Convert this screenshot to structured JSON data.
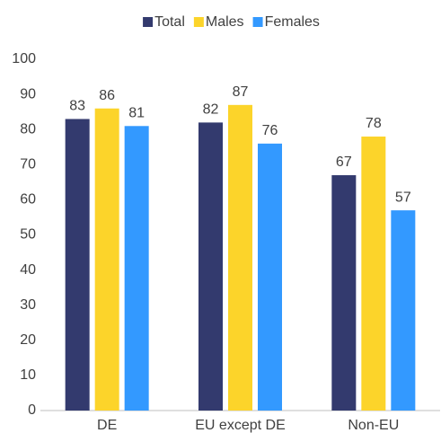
{
  "chart_data": {
    "type": "bar",
    "categories": [
      "DE",
      "EU except DE",
      "Non-EU"
    ],
    "series": [
      {
        "name": "Total",
        "color": "#333a6e",
        "values": [
          83,
          82,
          67
        ]
      },
      {
        "name": "Males",
        "color": "#fcd42a",
        "values": [
          86,
          87,
          78
        ]
      },
      {
        "name": "Females",
        "color": "#3399ff",
        "values": [
          81,
          76,
          57
        ]
      }
    ],
    "ylim": [
      0,
      100
    ],
    "yticks": [
      0,
      10,
      20,
      30,
      40,
      50,
      60,
      70,
      80,
      90,
      100
    ],
    "grid": false,
    "legend": "top"
  }
}
